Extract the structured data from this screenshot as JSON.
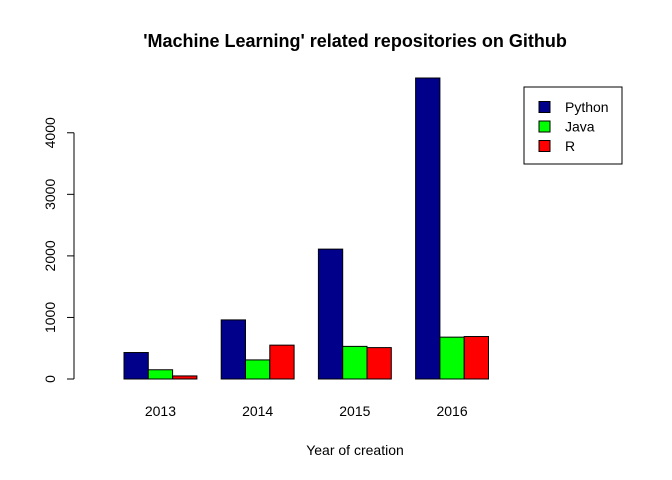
{
  "chart_data": {
    "type": "bar",
    "title": "'Machine Learning' related repositories on Github",
    "xlabel": "Year of creation",
    "ylabel": "",
    "categories": [
      "2013",
      "2014",
      "2015",
      "2016"
    ],
    "series": [
      {
        "name": "Python",
        "color": "#00008b",
        "values": [
          430,
          960,
          2110,
          4890
        ]
      },
      {
        "name": "Java",
        "color": "#00ff00",
        "values": [
          150,
          310,
          530,
          680
        ]
      },
      {
        "name": "R",
        "color": "#ff0000",
        "values": [
          50,
          550,
          510,
          690
        ]
      }
    ],
    "ylim": [
      0,
      4890
    ],
    "yticks": [
      0,
      1000,
      2000,
      3000,
      4000
    ],
    "legend": "top-right",
    "grid": false
  }
}
